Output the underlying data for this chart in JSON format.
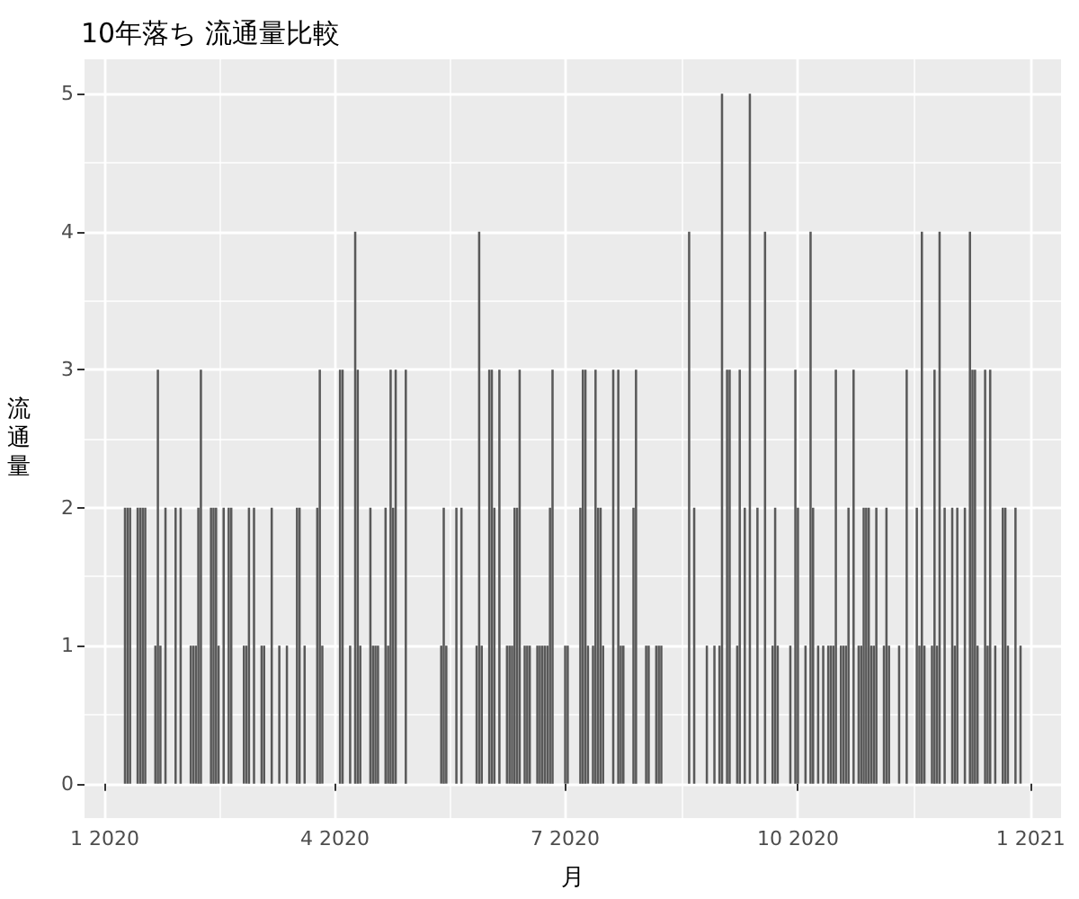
{
  "chart_data": {
    "type": "bar",
    "title": "10年落ち 流通量比較",
    "xlabel": "月",
    "ylabel": "流通量",
    "color": "#595959",
    "x": [
      "2020-01-09",
      "2020-01-10",
      "2020-01-11",
      "2020-01-14",
      "2020-01-15",
      "2020-01-16",
      "2020-01-17",
      "2020-01-21",
      "2020-01-22",
      "2020-01-23",
      "2020-01-25",
      "2020-01-29",
      "2020-01-31",
      "2020-02-04",
      "2020-02-05",
      "2020-02-06",
      "2020-02-07",
      "2020-02-08",
      "2020-02-12",
      "2020-02-13",
      "2020-02-14",
      "2020-02-15",
      "2020-02-17",
      "2020-02-19",
      "2020-02-20",
      "2020-02-25",
      "2020-02-26",
      "2020-02-27",
      "2020-02-29",
      "2020-03-03",
      "2020-03-04",
      "2020-03-07",
      "2020-03-10",
      "2020-03-13",
      "2020-03-17",
      "2020-03-18",
      "2020-03-20",
      "2020-03-25",
      "2020-03-26",
      "2020-03-27",
      "2020-04-03",
      "2020-04-04",
      "2020-04-07",
      "2020-04-09",
      "2020-04-10",
      "2020-04-11",
      "2020-04-15",
      "2020-04-16",
      "2020-04-17",
      "2020-04-18",
      "2020-04-21",
      "2020-04-22",
      "2020-04-23",
      "2020-04-24",
      "2020-04-25",
      "2020-04-29",
      "2020-05-13",
      "2020-05-14",
      "2020-05-15",
      "2020-05-19",
      "2020-05-21",
      "2020-05-27",
      "2020-05-28",
      "2020-05-29",
      "2020-06-01",
      "2020-06-02",
      "2020-06-03",
      "2020-06-05",
      "2020-06-08",
      "2020-06-09",
      "2020-06-10",
      "2020-06-11",
      "2020-06-12",
      "2020-06-13",
      "2020-06-15",
      "2020-06-16",
      "2020-06-17",
      "2020-06-20",
      "2020-06-21",
      "2020-06-22",
      "2020-06-23",
      "2020-06-24",
      "2020-06-25",
      "2020-06-26",
      "2020-07-01",
      "2020-07-02",
      "2020-07-07",
      "2020-07-08",
      "2020-07-09",
      "2020-07-10",
      "2020-07-12",
      "2020-07-13",
      "2020-07-14",
      "2020-07-15",
      "2020-07-16",
      "2020-07-20",
      "2020-07-22",
      "2020-07-23",
      "2020-07-24",
      "2020-07-28",
      "2020-07-29",
      "2020-08-02",
      "2020-08-03",
      "2020-08-06",
      "2020-08-07",
      "2020-08-08",
      "2020-08-19",
      "2020-08-21",
      "2020-08-26",
      "2020-08-29",
      "2020-08-31",
      "2020-09-01",
      "2020-09-03",
      "2020-09-04",
      "2020-09-07",
      "2020-09-08",
      "2020-09-10",
      "2020-09-12",
      "2020-09-15",
      "2020-09-18",
      "2020-09-21",
      "2020-09-22",
      "2020-09-23",
      "2020-09-28",
      "2020-09-30",
      "2020-10-01",
      "2020-10-04",
      "2020-10-06",
      "2020-10-07",
      "2020-10-09",
      "2020-10-11",
      "2020-10-13",
      "2020-10-14",
      "2020-10-15",
      "2020-10-16",
      "2020-10-18",
      "2020-10-19",
      "2020-10-20",
      "2020-10-21",
      "2020-10-23",
      "2020-10-25",
      "2020-10-26",
      "2020-10-27",
      "2020-10-28",
      "2020-10-29",
      "2020-10-30",
      "2020-10-31",
      "2020-11-01",
      "2020-11-04",
      "2020-11-05",
      "2020-11-06",
      "2020-11-10",
      "2020-11-13",
      "2020-11-17",
      "2020-11-18",
      "2020-11-19",
      "2020-11-20",
      "2020-11-23",
      "2020-11-24",
      "2020-11-25",
      "2020-11-26",
      "2020-11-28",
      "2020-12-01",
      "2020-12-02",
      "2020-12-03",
      "2020-12-06",
      "2020-12-08",
      "2020-12-09",
      "2020-12-10",
      "2020-12-11",
      "2020-12-14",
      "2020-12-15",
      "2020-12-16",
      "2020-12-18",
      "2020-12-21",
      "2020-12-22",
      "2020-12-23",
      "2020-12-26",
      "2020-12-28"
    ],
    "values": [
      2,
      2,
      2,
      2,
      2,
      2,
      2,
      1,
      3,
      1,
      2,
      2,
      2,
      1,
      1,
      1,
      2,
      3,
      2,
      2,
      2,
      1,
      2,
      2,
      2,
      1,
      1,
      2,
      2,
      1,
      1,
      2,
      1,
      1,
      2,
      2,
      1,
      2,
      3,
      1,
      3,
      3,
      1,
      4,
      3,
      1,
      2,
      1,
      1,
      1,
      2,
      1,
      3,
      2,
      3,
      3,
      1,
      2,
      1,
      2,
      2,
      1,
      4,
      1,
      3,
      3,
      2,
      3,
      1,
      1,
      1,
      2,
      2,
      3,
      1,
      1,
      1,
      1,
      1,
      1,
      1,
      1,
      2,
      3,
      1,
      1,
      2,
      3,
      3,
      1,
      1,
      3,
      2,
      2,
      1,
      3,
      3,
      1,
      1,
      2,
      3,
      1,
      1,
      1,
      1,
      1,
      4,
      2,
      1,
      1,
      1,
      5,
      3,
      3,
      1,
      3,
      2,
      5,
      2,
      4,
      1,
      2,
      1,
      1,
      3,
      2,
      1,
      4,
      2,
      1,
      1,
      1,
      1,
      1,
      3,
      1,
      1,
      1,
      2,
      3,
      1,
      1,
      2,
      2,
      2,
      1,
      1,
      2,
      1,
      2,
      1,
      1,
      3,
      2,
      1,
      4,
      1,
      1,
      3,
      1,
      4,
      2,
      2,
      1,
      2,
      2,
      4,
      3,
      3,
      1,
      3,
      1,
      3,
      1,
      2,
      2,
      1,
      2,
      1
    ],
    "xlim": [
      "2019-12-24",
      "2021-01-13"
    ],
    "xticks": [
      {
        "value": "2020-01-01",
        "label": "1 2020"
      },
      {
        "value": "2020-04-01",
        "label": "4 2020"
      },
      {
        "value": "2020-07-01",
        "label": "7 2020"
      },
      {
        "value": "2020-10-01",
        "label": "10 2020"
      },
      {
        "value": "2021-01-01",
        "label": "1 2021"
      }
    ],
    "ylim": [
      -0.25,
      5.25
    ],
    "yticks": [
      0,
      1,
      2,
      3,
      4,
      5
    ],
    "grid": true
  }
}
